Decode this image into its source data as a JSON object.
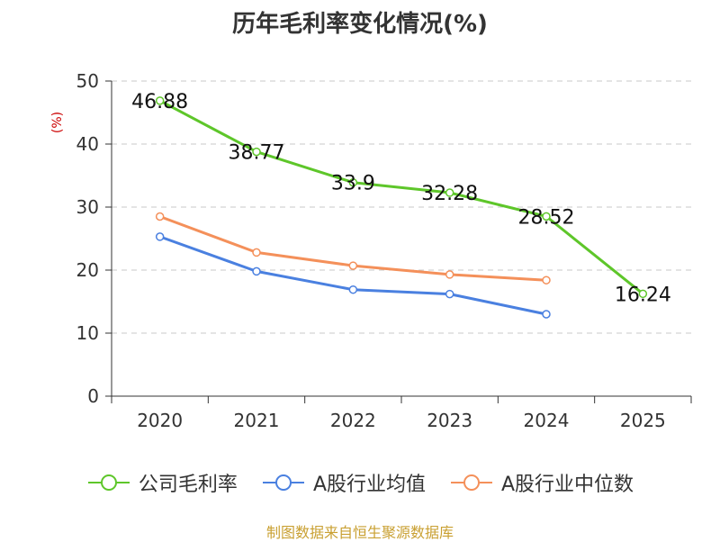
{
  "chart_data": {
    "type": "line",
    "title": "历年毛利率变化情况(%)",
    "ylabel": "(%)",
    "xlabel": "",
    "ylim": [
      0,
      50
    ],
    "yticks": [
      0,
      10,
      20,
      30,
      40,
      50
    ],
    "categories": [
      "2020",
      "2021",
      "2022",
      "2023",
      "2024",
      "2025"
    ],
    "series": [
      {
        "name": "公司毛利率",
        "color": "#5ec62a",
        "values": [
          46.88,
          38.77,
          33.9,
          32.28,
          28.52,
          16.24
        ],
        "labels": [
          "46.88",
          "38.77",
          "33.9",
          "32.28",
          "28.52",
          "16.24"
        ]
      },
      {
        "name": "A股行业均值",
        "color": "#4a80e0",
        "values": [
          25.3,
          19.8,
          16.9,
          16.2,
          13.0,
          null
        ]
      },
      {
        "name": "A股行业中位数",
        "color": "#f4905a",
        "values": [
          28.5,
          22.8,
          20.7,
          19.3,
          18.4,
          null
        ]
      }
    ],
    "legend_position": "bottom",
    "grid": true,
    "source": "制图数据来自恒生聚源数据库"
  }
}
